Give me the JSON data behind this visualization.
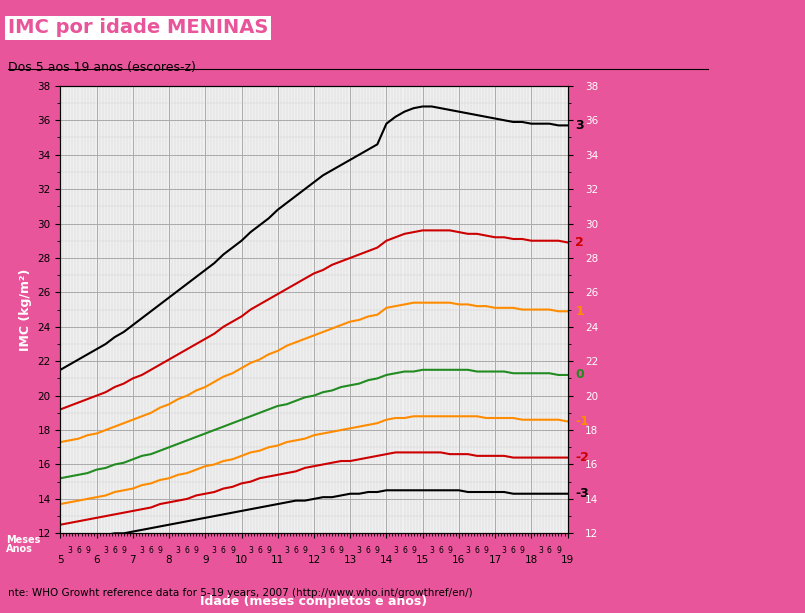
{
  "title": "IMC por idade MENINAS",
  "subtitle": "Dos 5 aos 19 anos (escores-z)",
  "xlabel": "Idade (meses completos e anos)",
  "ylabel": "IMC (kg/m²)",
  "footer": "nte: WHO Growht reference data for 5-19 years, 2007 (http://www.who.int/growthref/en/)",
  "bg_color": "#E8559A",
  "plot_bg": "#F0F0F0",
  "title_color": "#E8559A",
  "ylim": [
    12,
    38
  ],
  "curves": {
    "z3": {
      "color": "#000000",
      "label": "3",
      "label_color": "#000000"
    },
    "z2": {
      "color": "#CC0000",
      "label": "2",
      "label_color": "#CC0000"
    },
    "z1": {
      "color": "#FF8C00",
      "label": "1",
      "label_color": "#FF8C00"
    },
    "z0": {
      "color": "#228B22",
      "label": "0",
      "label_color": "#228B22"
    },
    "zm1": {
      "color": "#FF8C00",
      "label": "-1",
      "label_color": "#FF8C00"
    },
    "zm2": {
      "color": "#CC0000",
      "label": "-2",
      "label_color": "#CC0000"
    },
    "zm3": {
      "color": "#000000",
      "label": "-3",
      "label_color": "#000000"
    }
  },
  "months": [
    60,
    63,
    66,
    69,
    72,
    75,
    78,
    81,
    84,
    87,
    90,
    93,
    96,
    99,
    102,
    105,
    108,
    111,
    114,
    117,
    120,
    123,
    126,
    129,
    132,
    135,
    138,
    141,
    144,
    147,
    150,
    153,
    156,
    159,
    162,
    165,
    168,
    171,
    174,
    177,
    180,
    183,
    186,
    189,
    192,
    195,
    198,
    201,
    204,
    207,
    210,
    213,
    216,
    219,
    222,
    225,
    228
  ],
  "z3_vals": [
    21.5,
    21.8,
    22.1,
    22.4,
    22.7,
    23.0,
    23.4,
    23.7,
    24.1,
    24.5,
    24.9,
    25.3,
    25.7,
    26.1,
    26.5,
    26.9,
    27.3,
    27.7,
    28.2,
    28.6,
    29.0,
    29.5,
    29.9,
    30.3,
    30.8,
    31.2,
    31.6,
    32.0,
    32.4,
    32.8,
    33.1,
    33.4,
    33.7,
    34.0,
    34.3,
    34.6,
    35.8,
    36.2,
    36.5,
    36.7,
    36.8,
    36.8,
    36.7,
    36.6,
    36.5,
    36.4,
    36.3,
    36.2,
    36.1,
    36.0,
    35.9,
    35.9,
    35.8,
    35.8,
    35.8,
    35.7,
    35.7
  ],
  "z2_vals": [
    19.2,
    19.4,
    19.6,
    19.8,
    20.0,
    20.2,
    20.5,
    20.7,
    21.0,
    21.2,
    21.5,
    21.8,
    22.1,
    22.4,
    22.7,
    23.0,
    23.3,
    23.6,
    24.0,
    24.3,
    24.6,
    25.0,
    25.3,
    25.6,
    25.9,
    26.2,
    26.5,
    26.8,
    27.1,
    27.3,
    27.6,
    27.8,
    28.0,
    28.2,
    28.4,
    28.6,
    29.0,
    29.2,
    29.4,
    29.5,
    29.6,
    29.6,
    29.6,
    29.6,
    29.5,
    29.4,
    29.4,
    29.3,
    29.2,
    29.2,
    29.1,
    29.1,
    29.0,
    29.0,
    29.0,
    29.0,
    28.9
  ],
  "z1_vals": [
    17.3,
    17.4,
    17.5,
    17.7,
    17.8,
    18.0,
    18.2,
    18.4,
    18.6,
    18.8,
    19.0,
    19.3,
    19.5,
    19.8,
    20.0,
    20.3,
    20.5,
    20.8,
    21.1,
    21.3,
    21.6,
    21.9,
    22.1,
    22.4,
    22.6,
    22.9,
    23.1,
    23.3,
    23.5,
    23.7,
    23.9,
    24.1,
    24.3,
    24.4,
    24.6,
    24.7,
    25.1,
    25.2,
    25.3,
    25.4,
    25.4,
    25.4,
    25.4,
    25.4,
    25.3,
    25.3,
    25.2,
    25.2,
    25.1,
    25.1,
    25.1,
    25.0,
    25.0,
    25.0,
    25.0,
    24.9,
    24.9
  ],
  "z0_vals": [
    15.2,
    15.3,
    15.4,
    15.5,
    15.7,
    15.8,
    16.0,
    16.1,
    16.3,
    16.5,
    16.6,
    16.8,
    17.0,
    17.2,
    17.4,
    17.6,
    17.8,
    18.0,
    18.2,
    18.4,
    18.6,
    18.8,
    19.0,
    19.2,
    19.4,
    19.5,
    19.7,
    19.9,
    20.0,
    20.2,
    20.3,
    20.5,
    20.6,
    20.7,
    20.9,
    21.0,
    21.2,
    21.3,
    21.4,
    21.4,
    21.5,
    21.5,
    21.5,
    21.5,
    21.5,
    21.5,
    21.4,
    21.4,
    21.4,
    21.4,
    21.3,
    21.3,
    21.3,
    21.3,
    21.3,
    21.2,
    21.2
  ],
  "zm1_vals": [
    13.7,
    13.8,
    13.9,
    14.0,
    14.1,
    14.2,
    14.4,
    14.5,
    14.6,
    14.8,
    14.9,
    15.1,
    15.2,
    15.4,
    15.5,
    15.7,
    15.9,
    16.0,
    16.2,
    16.3,
    16.5,
    16.7,
    16.8,
    17.0,
    17.1,
    17.3,
    17.4,
    17.5,
    17.7,
    17.8,
    17.9,
    18.0,
    18.1,
    18.2,
    18.3,
    18.4,
    18.6,
    18.7,
    18.7,
    18.8,
    18.8,
    18.8,
    18.8,
    18.8,
    18.8,
    18.8,
    18.8,
    18.7,
    18.7,
    18.7,
    18.7,
    18.6,
    18.6,
    18.6,
    18.6,
    18.6,
    18.5
  ],
  "zm2_vals": [
    12.5,
    12.6,
    12.7,
    12.8,
    12.9,
    13.0,
    13.1,
    13.2,
    13.3,
    13.4,
    13.5,
    13.7,
    13.8,
    13.9,
    14.0,
    14.2,
    14.3,
    14.4,
    14.6,
    14.7,
    14.9,
    15.0,
    15.2,
    15.3,
    15.4,
    15.5,
    15.6,
    15.8,
    15.9,
    16.0,
    16.1,
    16.2,
    16.2,
    16.3,
    16.4,
    16.5,
    16.6,
    16.7,
    16.7,
    16.7,
    16.7,
    16.7,
    16.7,
    16.6,
    16.6,
    16.6,
    16.5,
    16.5,
    16.5,
    16.5,
    16.4,
    16.4,
    16.4,
    16.4,
    16.4,
    16.4,
    16.4
  ],
  "zm3_vals": [
    11.5,
    11.5,
    11.6,
    11.7,
    11.8,
    11.9,
    12.0,
    12.0,
    12.1,
    12.2,
    12.3,
    12.4,
    12.5,
    12.6,
    12.7,
    12.8,
    12.9,
    13.0,
    13.1,
    13.2,
    13.3,
    13.4,
    13.5,
    13.6,
    13.7,
    13.8,
    13.9,
    13.9,
    14.0,
    14.1,
    14.1,
    14.2,
    14.3,
    14.3,
    14.4,
    14.4,
    14.5,
    14.5,
    14.5,
    14.5,
    14.5,
    14.5,
    14.5,
    14.5,
    14.5,
    14.4,
    14.4,
    14.4,
    14.4,
    14.4,
    14.3,
    14.3,
    14.3,
    14.3,
    14.3,
    14.3,
    14.3
  ]
}
